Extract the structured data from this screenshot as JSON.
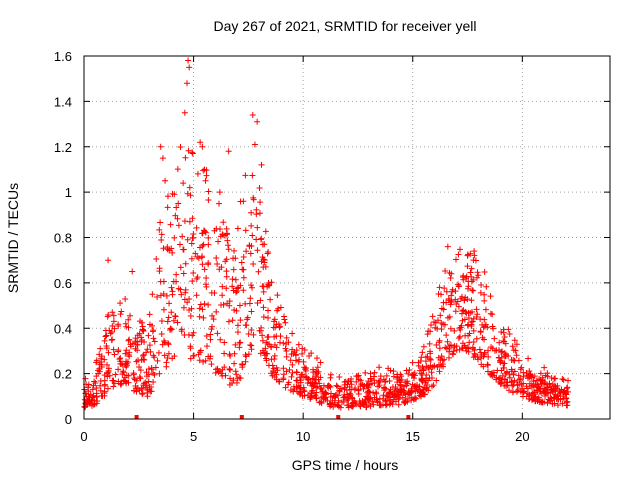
{
  "chart_data": {
    "type": "scatter",
    "title": "Day 267 of 2021, SRMTID for receiver yell",
    "xlabel": "GPS time / hours",
    "ylabel": "SRMTID / TECUs",
    "xlim": [
      0,
      24
    ],
    "ylim": [
      0,
      1.6
    ],
    "x_ticks": [
      "0",
      "5",
      "10",
      "15",
      "20"
    ],
    "y_ticks": [
      "0",
      "0.2",
      "0.4",
      "0.6",
      "0.8",
      "1",
      "1.2",
      "1.4",
      "1.6"
    ],
    "grid": true,
    "marker": "+",
    "color": "#ff0000",
    "envelope": [
      [
        0.0,
        0.05,
        0.15
      ],
      [
        0.5,
        0.06,
        0.18
      ],
      [
        1.0,
        0.1,
        0.35
      ],
      [
        1.5,
        0.15,
        0.45
      ],
      [
        2.0,
        0.15,
        0.4
      ],
      [
        2.5,
        0.1,
        0.35
      ],
      [
        3.0,
        0.1,
        0.35
      ],
      [
        3.5,
        0.2,
        0.7
      ],
      [
        4.0,
        0.25,
        0.8
      ],
      [
        4.5,
        0.3,
        1.0
      ],
      [
        5.0,
        0.25,
        0.9
      ],
      [
        5.5,
        0.25,
        0.85
      ],
      [
        6.0,
        0.2,
        0.75
      ],
      [
        6.5,
        0.15,
        0.65
      ],
      [
        7.0,
        0.15,
        0.7
      ],
      [
        7.5,
        0.25,
        0.9
      ],
      [
        8.0,
        0.3,
        0.85
      ],
      [
        8.5,
        0.2,
        0.55
      ],
      [
        9.0,
        0.15,
        0.4
      ],
      [
        9.5,
        0.12,
        0.3
      ],
      [
        10.0,
        0.1,
        0.25
      ],
      [
        10.5,
        0.08,
        0.22
      ],
      [
        11.0,
        0.06,
        0.18
      ],
      [
        11.5,
        0.05,
        0.15
      ],
      [
        12.0,
        0.05,
        0.14
      ],
      [
        12.5,
        0.05,
        0.15
      ],
      [
        13.0,
        0.05,
        0.16
      ],
      [
        13.5,
        0.06,
        0.18
      ],
      [
        14.0,
        0.06,
        0.18
      ],
      [
        14.5,
        0.06,
        0.16
      ],
      [
        15.0,
        0.08,
        0.2
      ],
      [
        15.5,
        0.1,
        0.25
      ],
      [
        16.0,
        0.15,
        0.4
      ],
      [
        16.5,
        0.25,
        0.55
      ],
      [
        17.0,
        0.3,
        0.6
      ],
      [
        17.5,
        0.3,
        0.65
      ],
      [
        18.0,
        0.25,
        0.6
      ],
      [
        18.5,
        0.2,
        0.45
      ],
      [
        19.0,
        0.15,
        0.35
      ],
      [
        19.5,
        0.12,
        0.3
      ],
      [
        20.0,
        0.1,
        0.25
      ],
      [
        20.5,
        0.08,
        0.18
      ],
      [
        21.0,
        0.07,
        0.18
      ],
      [
        21.5,
        0.06,
        0.15
      ],
      [
        22.0,
        0.06,
        0.14
      ]
    ],
    "peaks": [
      [
        3.5,
        1.2
      ],
      [
        3.6,
        1.15
      ],
      [
        4.3,
        0.95
      ],
      [
        4.6,
        1.35
      ],
      [
        4.7,
        1.48
      ],
      [
        4.75,
        1.58
      ],
      [
        4.8,
        1.55
      ],
      [
        5.3,
        1.22
      ],
      [
        5.4,
        1.2
      ],
      [
        6.6,
        1.18
      ],
      [
        7.7,
        1.34
      ],
      [
        7.9,
        1.31
      ],
      [
        8.1,
        1.12
      ],
      [
        3.7,
        1.05
      ],
      [
        5.5,
        1.1
      ],
      [
        6.2,
        1.0
      ],
      [
        16.6,
        0.76
      ],
      [
        17.5,
        0.72
      ],
      [
        17.8,
        0.74
      ],
      [
        7.8,
        1.21
      ],
      [
        1.1,
        0.7
      ],
      [
        2.2,
        0.65
      ]
    ],
    "n_points": 1600,
    "x_end": 22.1,
    "gap_markers": [
      2.4,
      7.2,
      11.6,
      14.8
    ]
  }
}
